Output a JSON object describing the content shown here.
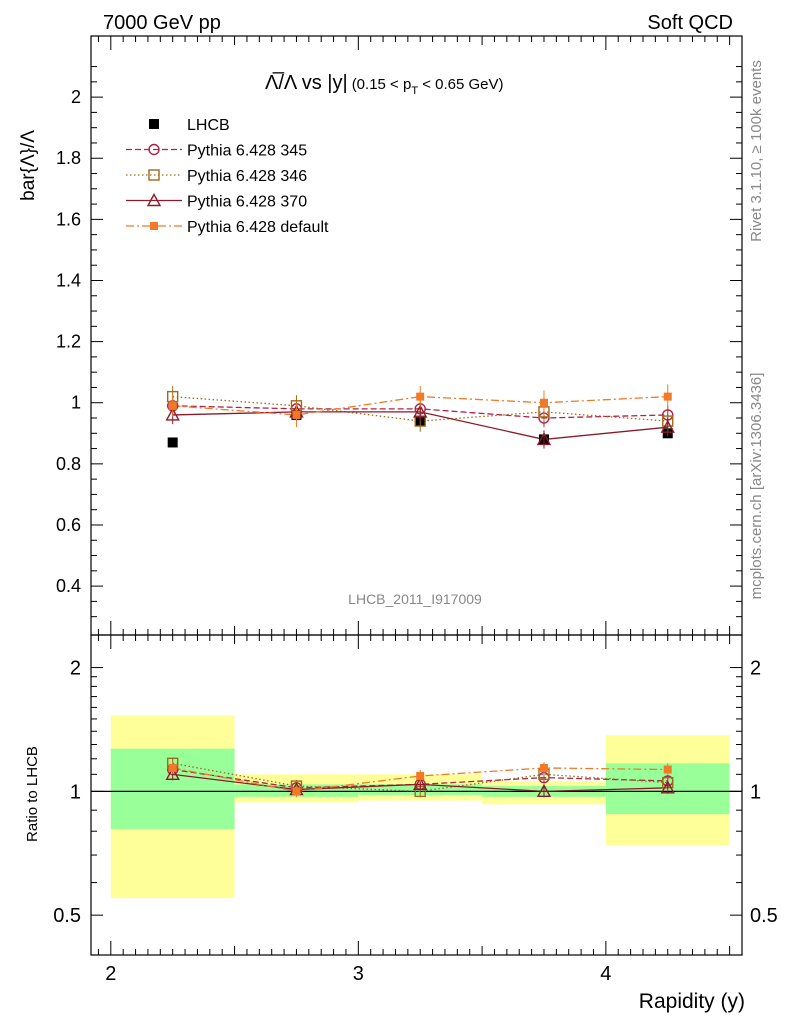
{
  "header": {
    "left": "7000 GeV pp",
    "right": "Soft QCD"
  },
  "side_labels": {
    "rivet": "Rivet 3.1.10, ≥ 100k events",
    "mcplots": "mcplots.cern.ch [arXiv:1306.3436]"
  },
  "watermark": "LHCB_2011_I917009",
  "title": {
    "ratio_part": "Λ̅/Λ vs |y|",
    "range_part": "(0.15 < p",
    "range_sub": "T",
    "range_end": " < 0.65 GeV)"
  },
  "colors": {
    "data": "#000000",
    "p345": "#b22244",
    "p346": "#a06a1a",
    "p370": "#8b1a2a",
    "pdefault": "#f07a28",
    "band_inner": "#99ff99",
    "band_outer": "#ffff99"
  },
  "chart_data": [
    {
      "type": "scatter",
      "panel": "main",
      "xlabel": "Rapidity (y)",
      "ylabel": "bar{Λ}/Λ",
      "xlim": [
        1.92,
        4.55
      ],
      "ylim": [
        0.24,
        2.2
      ],
      "yticks": [
        0.4,
        0.6,
        0.8,
        1.0,
        1.2,
        1.4,
        1.6,
        1.8,
        2.0
      ],
      "ytick_labels": [
        "0.4",
        "0.6",
        "0.8",
        "1",
        "1.2",
        "1.4",
        "1.6",
        "1.8",
        "2"
      ],
      "x": [
        2.25,
        2.75,
        3.25,
        3.75,
        4.25
      ],
      "series": [
        {
          "name": "LHCB",
          "key": "data",
          "values": [
            0.87,
            0.96,
            0.94,
            0.88,
            0.9
          ],
          "errors": [
            0.01,
            0.01,
            0.01,
            0.01,
            0.01
          ]
        },
        {
          "name": "Pythia 6.428 345",
          "key": "p345",
          "values": [
            0.99,
            0.98,
            0.98,
            0.95,
            0.96
          ],
          "errors": [
            0.03,
            0.03,
            0.03,
            0.03,
            0.03
          ]
        },
        {
          "name": "Pythia 6.428 346",
          "key": "p346",
          "values": [
            1.02,
            0.99,
            0.94,
            0.97,
            0.94
          ],
          "errors": [
            0.035,
            0.035,
            0.035,
            0.035,
            0.035
          ]
        },
        {
          "name": "Pythia 6.428 370",
          "key": "p370",
          "values": [
            0.96,
            0.97,
            0.97,
            0.88,
            0.92
          ],
          "errors": [
            0.03,
            0.03,
            0.03,
            0.03,
            0.03
          ]
        },
        {
          "name": "Pythia 6.428 default",
          "key": "pdefault",
          "values": [
            0.99,
            0.96,
            1.02,
            1.0,
            1.02
          ],
          "errors": [
            0.035,
            0.04,
            0.035,
            0.04,
            0.04
          ]
        }
      ]
    },
    {
      "type": "scatter",
      "panel": "ratio",
      "ylabel": "Ratio to LHCB",
      "xlim": [
        1.92,
        4.55
      ],
      "ylim": [
        0.4,
        2.4
      ],
      "yscale": "log",
      "yticks": [
        0.5,
        1,
        2
      ],
      "ytick_labels": [
        "0.5",
        "1",
        "2"
      ],
      "xticks": [
        2,
        3,
        4
      ],
      "xtick_labels": [
        "2",
        "3",
        "4"
      ],
      "x": [
        2.25,
        2.75,
        3.25,
        3.75,
        4.25
      ],
      "bins": [
        [
          2.0,
          2.5
        ],
        [
          2.5,
          3.0
        ],
        [
          3.0,
          3.5
        ],
        [
          3.5,
          4.0
        ],
        [
          4.0,
          4.5
        ]
      ],
      "band_inner": [
        [
          0.81,
          1.27
        ],
        [
          0.97,
          1.04
        ],
        [
          0.98,
          1.04
        ],
        [
          0.97,
          1.03
        ],
        [
          0.88,
          1.17
        ]
      ],
      "band_outer": [
        [
          0.55,
          1.53
        ],
        [
          0.94,
          1.1
        ],
        [
          0.95,
          1.1
        ],
        [
          0.93,
          1.06
        ],
        [
          0.74,
          1.37
        ]
      ],
      "series": [
        {
          "name": "Pythia 6.428 345",
          "key": "p345",
          "values": [
            1.13,
            1.02,
            1.04,
            1.08,
            1.06
          ]
        },
        {
          "name": "Pythia 6.428 346",
          "key": "p346",
          "values": [
            1.17,
            1.03,
            1.0,
            1.1,
            1.05
          ]
        },
        {
          "name": "Pythia 6.428 370",
          "key": "p370",
          "values": [
            1.1,
            1.01,
            1.04,
            1.0,
            1.02
          ]
        },
        {
          "name": "Pythia 6.428 default",
          "key": "pdefault",
          "values": [
            1.14,
            1.0,
            1.09,
            1.14,
            1.13
          ]
        }
      ]
    }
  ]
}
